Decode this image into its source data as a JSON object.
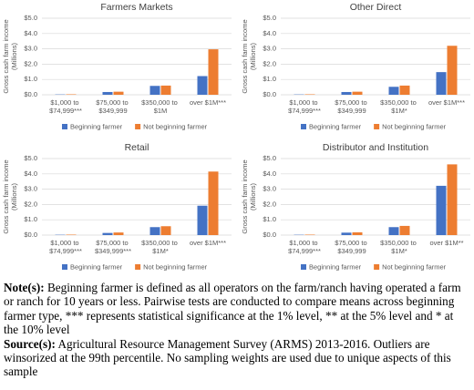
{
  "chart_data": [
    {
      "type": "bar",
      "title": "Farmers Markets",
      "ylabel": [
        "Gross cash farm income",
        "(Millions)"
      ],
      "categories": [
        "$1,000 to $74,999***",
        "$75,000 to $349,999",
        "$350,000 to $1M",
        "over $1M***"
      ],
      "series": [
        {
          "name": "Beginning farmer",
          "color": "#4472c4",
          "values": [
            0.02,
            0.18,
            0.58,
            1.22
          ]
        },
        {
          "name": "Not beginning farmer",
          "color": "#ed7d31",
          "values": [
            0.03,
            0.2,
            0.6,
            2.97
          ]
        }
      ],
      "ylim": [
        0,
        5
      ],
      "yticks": [
        {
          "value": 0,
          "label": "$0.0"
        },
        {
          "value": 1,
          "label": "$1.0"
        },
        {
          "value": 2,
          "label": "$2.0"
        },
        {
          "value": 3,
          "label": "$3.0"
        },
        {
          "value": 4,
          "label": "$4.0"
        },
        {
          "value": 5,
          "label": "$5.0"
        }
      ],
      "grid": true,
      "legend": "bottom"
    },
    {
      "type": "bar",
      "title": "Other Direct",
      "ylabel": [
        "Gross cash farm income",
        "(Millions)"
      ],
      "categories": [
        "$1,000 to $74,999***",
        "$75,000 to $349,999",
        "$350,000 to $1M*",
        "over $1M***"
      ],
      "series": [
        {
          "name": "Beginning farmer",
          "color": "#4472c4",
          "values": [
            0.02,
            0.18,
            0.52,
            1.48
          ]
        },
        {
          "name": "Not beginning farmer",
          "color": "#ed7d31",
          "values": [
            0.03,
            0.2,
            0.6,
            3.2
          ]
        }
      ],
      "ylim": [
        0,
        5
      ],
      "yticks": [
        {
          "value": 0,
          "label": "$0.0"
        },
        {
          "value": 1,
          "label": "$1.0"
        },
        {
          "value": 2,
          "label": "$2.0"
        },
        {
          "value": 3,
          "label": "$3.0"
        },
        {
          "value": 4,
          "label": "$4.0"
        },
        {
          "value": 5,
          "label": "$5.0"
        }
      ],
      "grid": true,
      "legend": "bottom"
    },
    {
      "type": "bar",
      "title": "Retail",
      "ylabel": [
        "Gross cash farm income",
        "(Millions)"
      ],
      "categories": [
        "$1,000 to $74,999***",
        "$75,000 to $349,999***",
        "$350,000 to $1M*",
        "over $1M***"
      ],
      "series": [
        {
          "name": "Beginning farmer",
          "color": "#4472c4",
          "values": [
            0.02,
            0.14,
            0.52,
            1.92
          ]
        },
        {
          "name": "Not beginning farmer",
          "color": "#ed7d31",
          "values": [
            0.03,
            0.17,
            0.58,
            4.15
          ]
        }
      ],
      "ylim": [
        0,
        5
      ],
      "yticks": [
        {
          "value": 0,
          "label": "$0.0"
        },
        {
          "value": 1,
          "label": "$1.0"
        },
        {
          "value": 2,
          "label": "$2.0"
        },
        {
          "value": 3,
          "label": "$3.0"
        },
        {
          "value": 4,
          "label": "$4.0"
        },
        {
          "value": 5,
          "label": "$5.0"
        }
      ],
      "grid": true,
      "legend": "bottom"
    },
    {
      "type": "bar",
      "title": "Distributor and Institution",
      "ylabel": [
        "Gross cash farm income",
        "(Millions)"
      ],
      "categories": [
        "$1,000 to $74,999***",
        "$75,000 to $349,999",
        "$350,000 to $1M*",
        "over $1M**"
      ],
      "series": [
        {
          "name": "Beginning farmer",
          "color": "#4472c4",
          "values": [
            0.02,
            0.16,
            0.52,
            3.22
          ]
        },
        {
          "name": "Not beginning farmer",
          "color": "#ed7d31",
          "values": [
            0.03,
            0.18,
            0.6,
            4.62
          ]
        }
      ],
      "ylim": [
        0,
        5
      ],
      "yticks": [
        {
          "value": 0,
          "label": "$0.0"
        },
        {
          "value": 1,
          "label": "$1.0"
        },
        {
          "value": 2,
          "label": "$2.0"
        },
        {
          "value": 3,
          "label": "$3.0"
        },
        {
          "value": 4,
          "label": "$4.0"
        },
        {
          "value": 5,
          "label": "$5.0"
        }
      ],
      "grid": true,
      "legend": "bottom"
    }
  ],
  "notes": {
    "note_label": "Note(s):",
    "note_text": "Beginning farmer is defined as all operators on the farm/ranch having operated a farm or ranch for 10 years or less. Pairwise tests are conducted to compare means across beginning farmer type, *** represents statistical significance at the 1% level, ** at the 5% level and * at the 10% level",
    "source_label": "Source(s):",
    "source_text": "Agricultural Resource Management Survey (ARMS) 2013-2016. Outliers are winsorized at the 99th percentile. No sampling weights are used due to unique aspects of this sample"
  }
}
